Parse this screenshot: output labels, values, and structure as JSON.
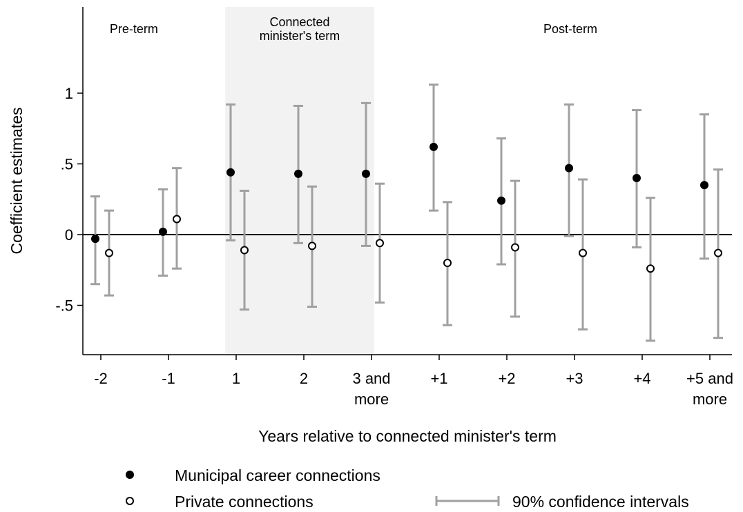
{
  "chart_data": {
    "type": "scatter",
    "xlabel": "Years relative to connected minister's term",
    "ylabel": "Coefficient estimates",
    "ylim": [
      -0.85,
      1.6
    ],
    "y_ticks": [
      {
        "value": 1,
        "label": "1"
      },
      {
        "value": 0.5,
        "label": ".5"
      },
      {
        "value": 0,
        "label": "0"
      },
      {
        "value": -0.5,
        "label": "-.5"
      }
    ],
    "categories": [
      [
        "-2"
      ],
      [
        "-1"
      ],
      [
        "1"
      ],
      [
        "2"
      ],
      [
        "3 and",
        "more"
      ],
      [
        "+1"
      ],
      [
        "+2"
      ],
      [
        "+3"
      ],
      [
        "+4"
      ],
      [
        "+5 and",
        "more"
      ]
    ],
    "period_labels": [
      {
        "lines": [
          "Pre-term"
        ],
        "center": 0.55
      },
      {
        "lines": [
          "Connected",
          "minister's term"
        ],
        "center": 3.0
      },
      {
        "lines": [
          "Post-term"
        ],
        "center": 7.0
      }
    ],
    "shaded_region": {
      "from_index": 1.9,
      "to_index": 4.1,
      "color": "#f2f2f2"
    },
    "reference_line_y": 0,
    "series": [
      {
        "name": "Municipal career connections",
        "marker": "filled-circle",
        "values": [
          -0.03,
          0.02,
          0.44,
          0.43,
          0.43,
          0.62,
          0.24,
          0.47,
          0.4,
          0.35
        ],
        "ci_low": [
          -0.35,
          -0.29,
          -0.04,
          -0.06,
          -0.08,
          0.17,
          -0.21,
          -0.01,
          -0.09,
          -0.17
        ],
        "ci_high": [
          0.27,
          0.32,
          0.92,
          0.91,
          0.93,
          1.06,
          0.68,
          0.92,
          0.88,
          0.85
        ]
      },
      {
        "name": "Private connections",
        "marker": "hollow-circle",
        "values": [
          -0.13,
          0.11,
          -0.11,
          -0.08,
          -0.06,
          -0.2,
          -0.09,
          -0.13,
          -0.24,
          -0.13
        ],
        "ci_low": [
          -0.43,
          -0.24,
          -0.53,
          -0.51,
          -0.48,
          -0.64,
          -0.58,
          -0.67,
          -0.75,
          -0.73
        ],
        "ci_high": [
          0.17,
          0.47,
          0.31,
          0.34,
          0.36,
          0.23,
          0.38,
          0.39,
          0.26,
          0.46
        ]
      }
    ],
    "ci_label": "90% confidence intervals",
    "colors": {
      "ci": "#a0a0a0",
      "marker": "#000000",
      "axis": "#000000"
    },
    "legend_position": "bottom"
  }
}
